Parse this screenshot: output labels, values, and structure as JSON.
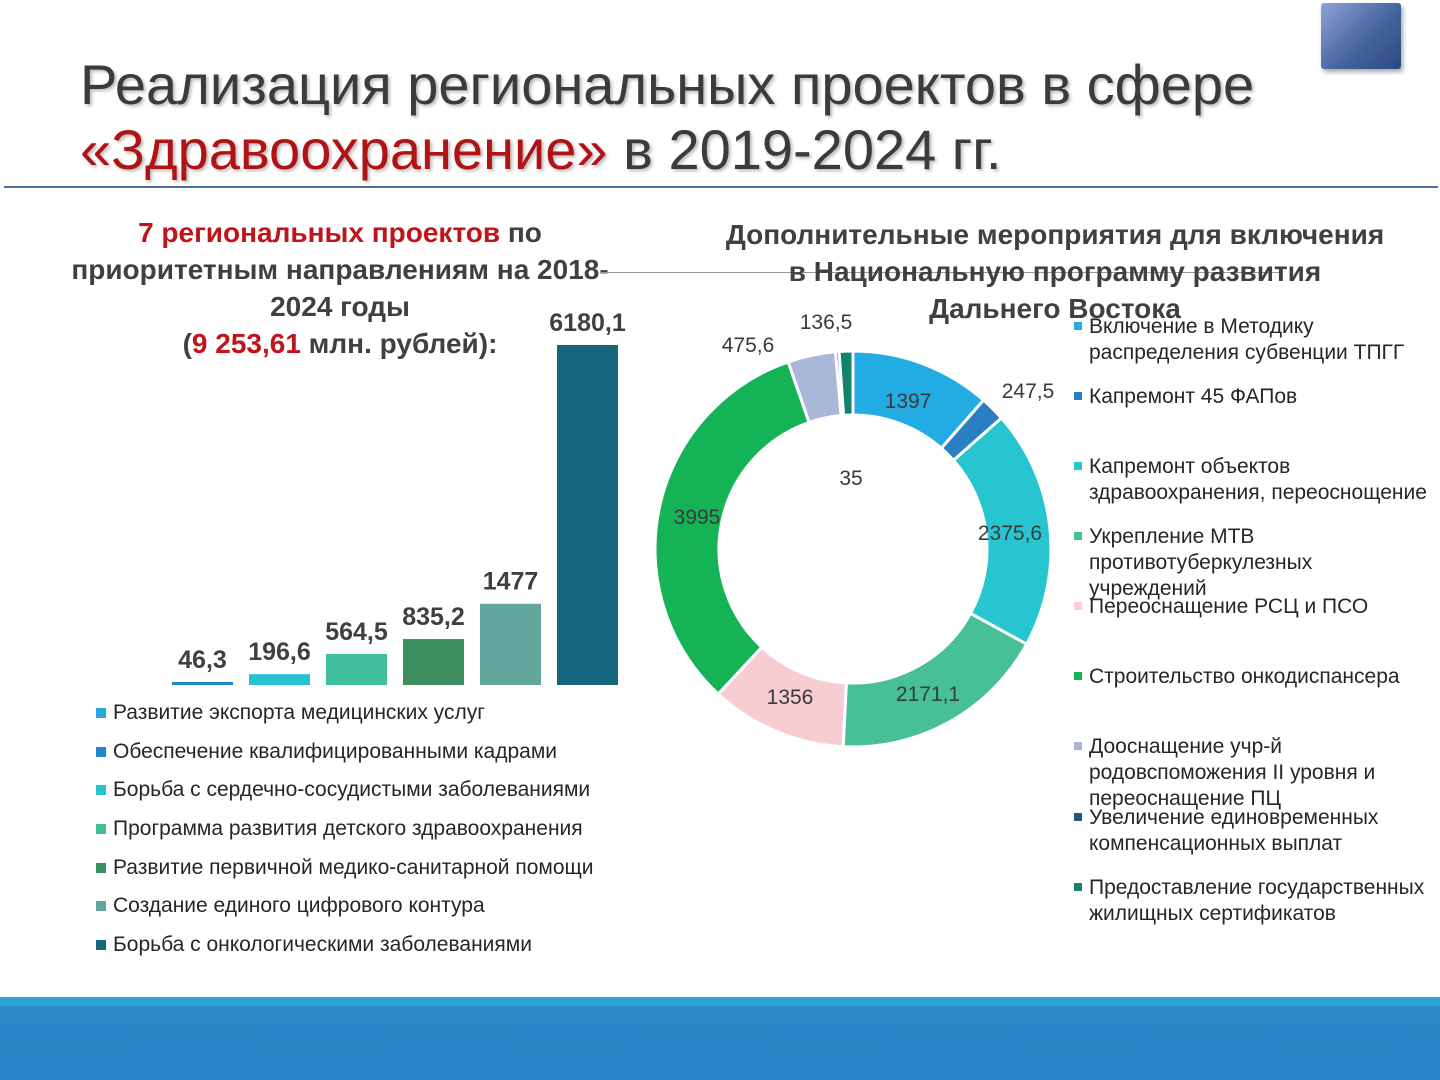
{
  "title": {
    "line1": "Реализация региональных проектов в сфере",
    "line2_red": "«Здравоохранение»",
    "line2_rest": " в 2019-2024 гг."
  },
  "left_heading": {
    "red": "7 региональных проектов",
    "rest": " по приоритетным направлениям на 2018-2024 годы",
    "amount_open": "(",
    "amount": "9 253,61",
    "amount_rest": " млн. рублей):"
  },
  "right_heading": "Дополнительные мероприятия для включения\nв Национальную программу развития\nДальнего Востока",
  "chart_data": [
    {
      "type": "bar",
      "categories": [
        "Развитие экспорта медицинских услуг",
        "Обеспечение квалифицированными кадрами",
        "Борьба с сердечно-сосудистыми заболеваниями",
        "Программа развития детского здравоохранения",
        "Развитие первичной медико-санитарной помощи",
        "Создание единого цифрового контура",
        "Борьба с онкологическими заболеваниями"
      ],
      "values": [
        0,
        46.3,
        196.6,
        564.5,
        835.2,
        1477,
        6180.1
      ],
      "labels": [
        "",
        "46,3",
        "196,6",
        "564,5",
        "835,2",
        "1477",
        "6180,1"
      ],
      "colors": [
        "#2aa7dd",
        "#1f88c9",
        "#27c3d3",
        "#3fbf9b",
        "#3d8f5f",
        "#62a79e",
        "#17667f"
      ],
      "legend": "bottom"
    },
    {
      "type": "pie",
      "style": "donut",
      "categories": [
        "Включение в Методику распределения субвенции ТПГГ",
        "Капремонт 45 ФАПов",
        "Капремонт объектов здравоохранения, переоснощение",
        "Укрепление МТВ противотуберкулезных учреждений",
        "Переоснащение РСЦ и ПСО",
        "Строительство онкодиспансера",
        "Дооснащение учр-й родовспоможения II уровня и переоснащение ПЦ",
        "Увеличение единовременных компенсационных выплат",
        "Предоставление государственных жилищных сертификатов"
      ],
      "values": [
        1397,
        247.5,
        2375.6,
        2171.1,
        1356,
        3995,
        475.6,
        35,
        136.5
      ],
      "labels": [
        "1397",
        "247,5",
        "2375,6",
        "2171,1",
        "1356",
        "3995",
        "475,6",
        "35",
        "136,5"
      ],
      "colors": [
        "#22ace3",
        "#2a7fc4",
        "#27c5d0",
        "#47c09a",
        "#f7cdd2",
        "#14b355",
        "#a9b7d9",
        "#1d5a86",
        "#14836d"
      ],
      "legend": "right"
    }
  ]
}
